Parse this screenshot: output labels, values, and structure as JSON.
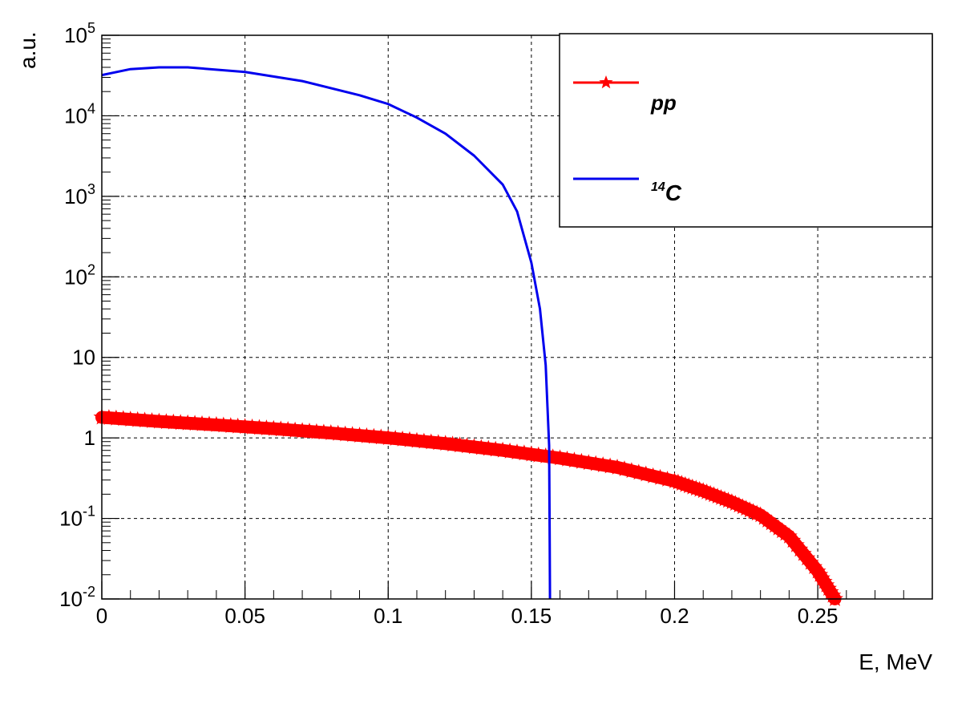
{
  "chart_data": {
    "type": "line",
    "xlabel": "E, MeV",
    "ylabel": "a.u.",
    "xlim": [
      0,
      0.29
    ],
    "ylim": [
      0.01,
      100000
    ],
    "yscale": "log",
    "grid": true,
    "legend_position": "top-right",
    "x_ticks": [
      {
        "value": 0,
        "label": "0"
      },
      {
        "value": 0.05,
        "label": "0.05"
      },
      {
        "value": 0.1,
        "label": "0.1"
      },
      {
        "value": 0.15,
        "label": "0.15"
      },
      {
        "value": 0.2,
        "label": "0.2"
      },
      {
        "value": 0.25,
        "label": "0.25"
      }
    ],
    "y_ticks": [
      {
        "value": 0.01,
        "base": "10",
        "exp": "-2"
      },
      {
        "value": 0.1,
        "base": "10",
        "exp": "-1"
      },
      {
        "value": 1,
        "base": "1",
        "exp": ""
      },
      {
        "value": 10,
        "base": "10",
        "exp": ""
      },
      {
        "value": 100,
        "base": "10",
        "exp": "2"
      },
      {
        "value": 1000,
        "base": "10",
        "exp": "3"
      },
      {
        "value": 10000,
        "base": "10",
        "exp": "4"
      },
      {
        "value": 100000,
        "base": "10",
        "exp": "5"
      }
    ],
    "series": [
      {
        "name": "pp",
        "color": "#ff0000",
        "marker": "star",
        "x": [
          0,
          0.02,
          0.04,
          0.06,
          0.08,
          0.1,
          0.12,
          0.14,
          0.16,
          0.18,
          0.2,
          0.21,
          0.22,
          0.23,
          0.24,
          0.25,
          0.256
        ],
        "y": [
          1.8,
          1.6,
          1.45,
          1.3,
          1.15,
          1.0,
          0.85,
          0.7,
          0.56,
          0.43,
          0.29,
          0.22,
          0.16,
          0.11,
          0.06,
          0.022,
          0.01
        ]
      },
      {
        "name": "14C",
        "name_prefix": "14",
        "name_main": "C",
        "color": "#0000ee",
        "marker": "none",
        "x": [
          0,
          0.01,
          0.02,
          0.03,
          0.05,
          0.07,
          0.09,
          0.1,
          0.11,
          0.12,
          0.13,
          0.14,
          0.145,
          0.15,
          0.153,
          0.155,
          0.1562,
          0.1564,
          0.1565
        ],
        "y": [
          32000,
          38000,
          40000,
          40000,
          35000,
          27000,
          18000,
          14000,
          9500,
          6000,
          3200,
          1400,
          650,
          150,
          40,
          8,
          0.8,
          0.05,
          0.01
        ]
      }
    ]
  }
}
